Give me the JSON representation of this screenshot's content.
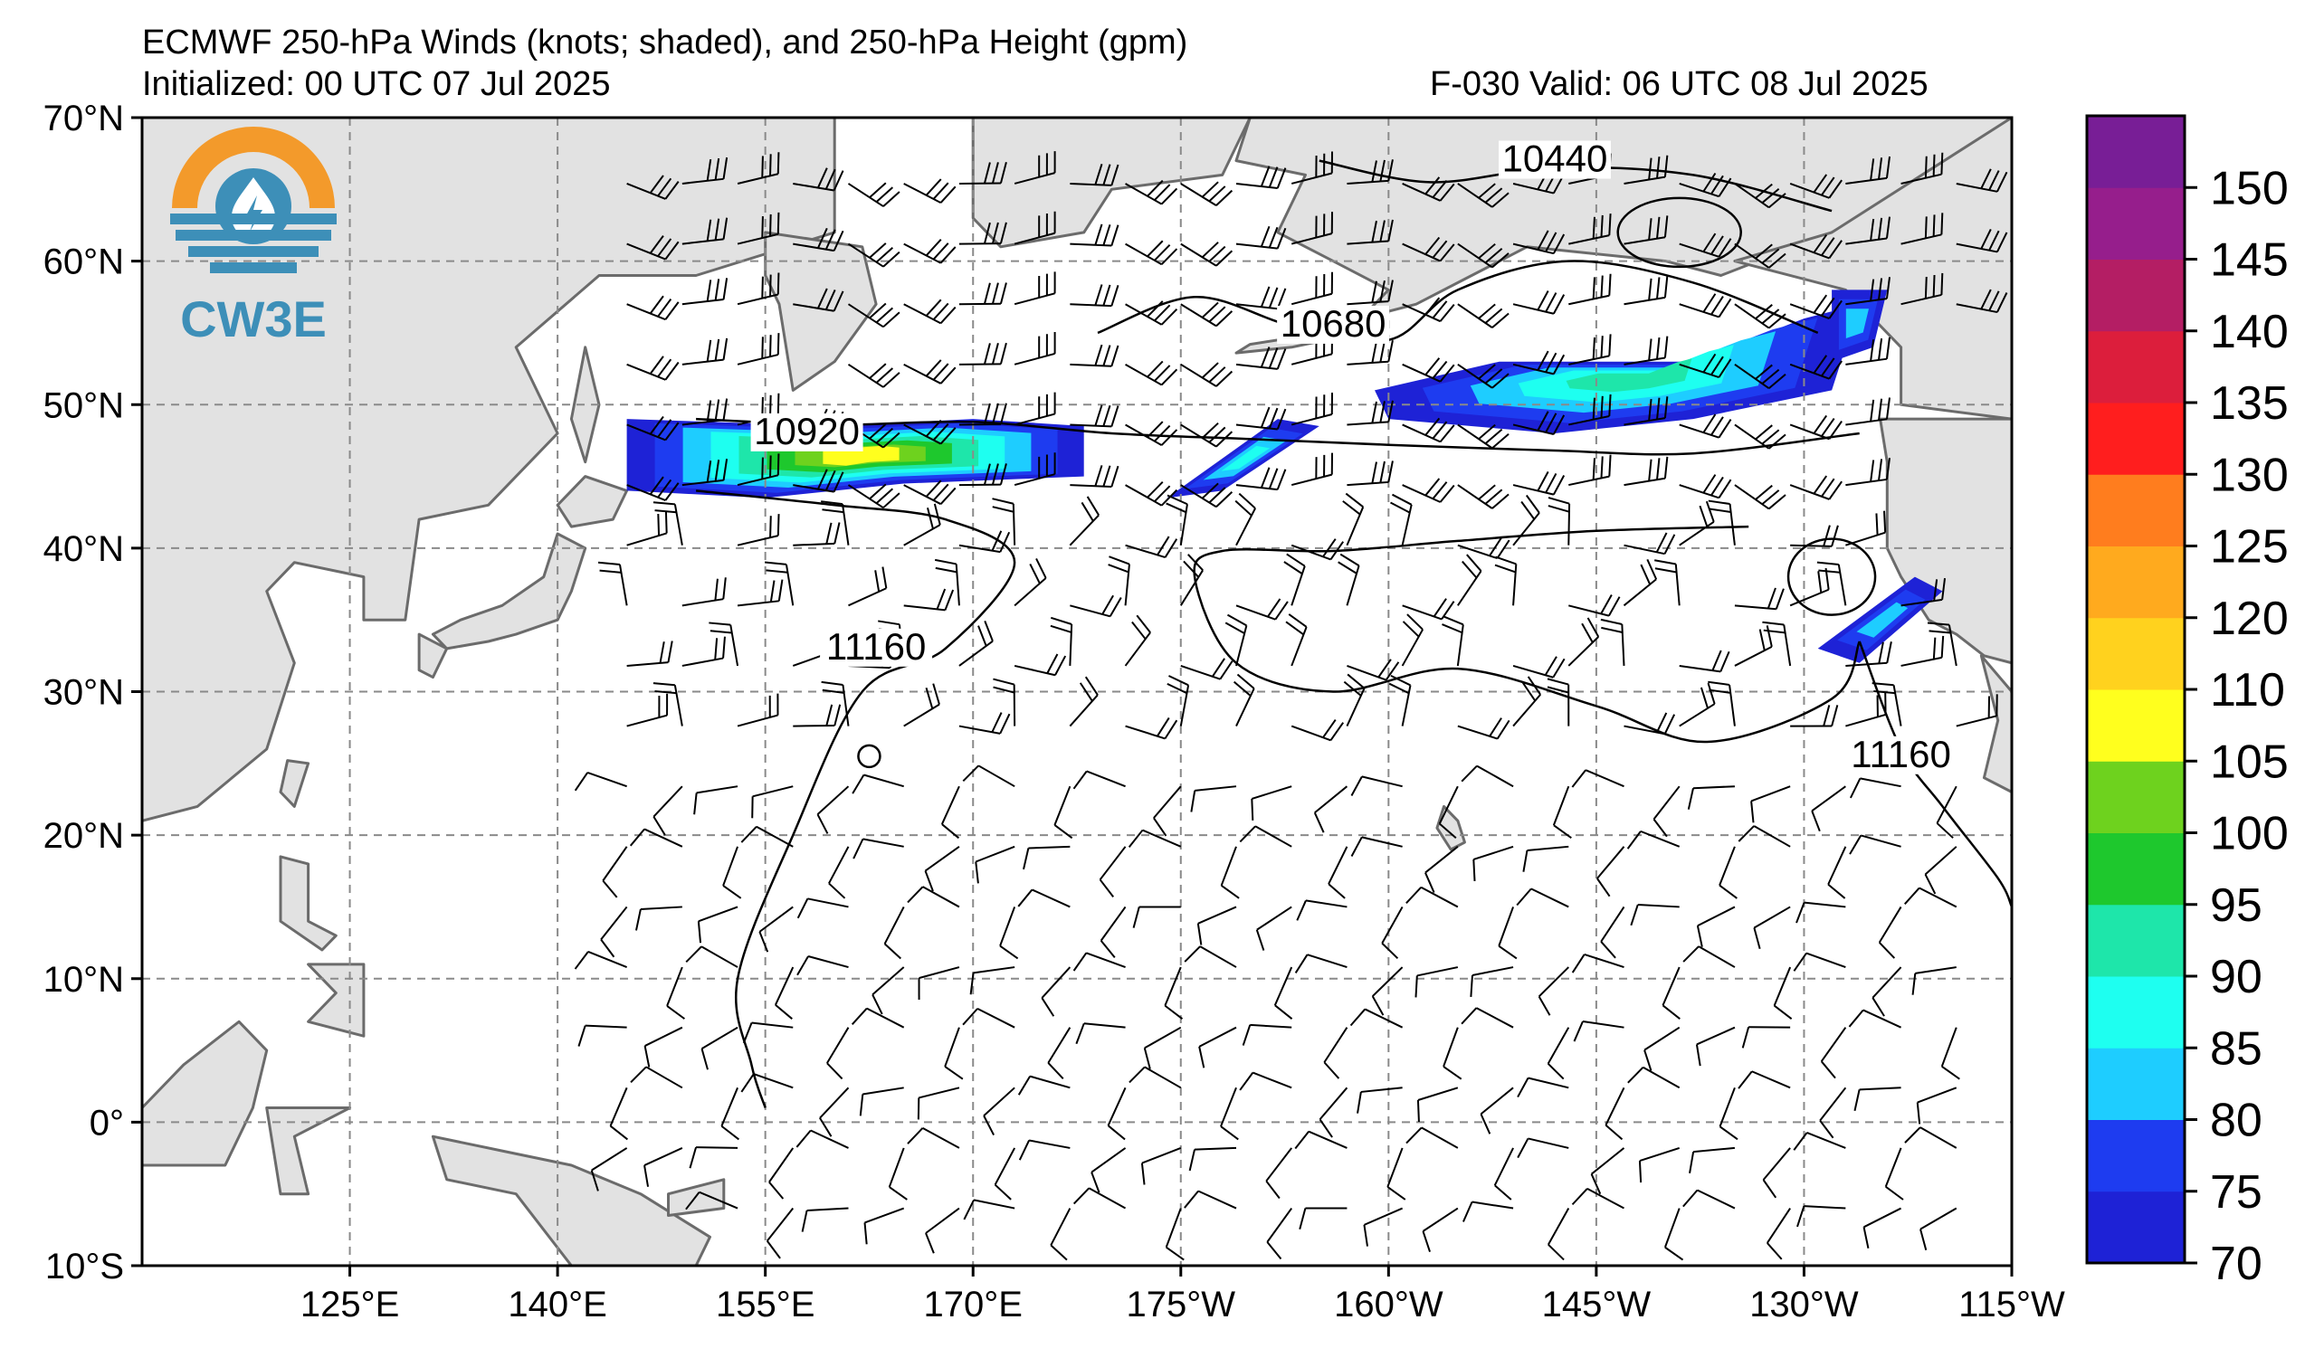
{
  "header": {
    "title_line1": "ECMWF 250-hPa Winds (knots; shaded), and 250-hPa Height (gpm)",
    "title_line2": "Initialized: 00 UTC 07 Jul 2025",
    "title_right": "F-030  Valid: 06 UTC 08 Jul 2025"
  },
  "logo": {
    "text": "CW3E",
    "colors": {
      "orange": "#f39a2b",
      "blue": "#3d8fb8"
    }
  },
  "map": {
    "extent": {
      "lon_min": 110,
      "lon_max": 245,
      "lat_min": -10,
      "lat_max": 70
    },
    "lat_ticks": [
      {
        "lat": 70,
        "label": "70°N"
      },
      {
        "lat": 60,
        "label": "60°N"
      },
      {
        "lat": 50,
        "label": "50°N"
      },
      {
        "lat": 40,
        "label": "40°N"
      },
      {
        "lat": 30,
        "label": "30°N"
      },
      {
        "lat": 20,
        "label": "20°N"
      },
      {
        "lat": 10,
        "label": "10°N"
      },
      {
        "lat": 0,
        "label": "0°"
      },
      {
        "lat": -10,
        "label": "10°S"
      }
    ],
    "lon_ticks": [
      {
        "lon": 125,
        "label": "125°E"
      },
      {
        "lon": 140,
        "label": "140°E"
      },
      {
        "lon": 155,
        "label": "155°E"
      },
      {
        "lon": 170,
        "label": "170°E"
      },
      {
        "lon": 185,
        "label": "175°W"
      },
      {
        "lon": 200,
        "label": "160°W"
      },
      {
        "lon": 215,
        "label": "145°W"
      },
      {
        "lon": 230,
        "label": "130°W"
      },
      {
        "lon": 245,
        "label": "115°W"
      }
    ],
    "colors": {
      "land": "#e2e2e2",
      "coast": "#6b6b6b",
      "grid": "#8a8a8a",
      "ocean": "#ffffff"
    },
    "height_contours": [
      {
        "label": "10440",
        "points": [
          [
            195,
            67
          ],
          [
            203,
            65.5
          ],
          [
            212,
            66.5
          ],
          [
            222,
            66
          ],
          [
            232,
            63.5
          ]
        ],
        "label_at": [
          212,
          66.5
        ]
      },
      {
        "label": "10680",
        "points": [
          [
            179,
            55
          ],
          [
            186,
            57.5
          ],
          [
            193,
            55.5
          ],
          [
            200,
            54.5
          ],
          [
            205,
            58
          ],
          [
            213,
            60
          ],
          [
            222,
            58.5
          ],
          [
            231,
            55
          ]
        ],
        "label_at": [
          196,
          55
        ]
      },
      {
        "label": "10920",
        "points": [
          [
            150,
            49
          ],
          [
            160,
            48.6
          ],
          [
            170,
            48.8
          ],
          [
            180,
            48
          ],
          [
            190,
            47.6
          ],
          [
            200,
            47.2
          ],
          [
            212,
            46.8
          ],
          [
            222,
            46.6
          ],
          [
            234,
            48
          ]
        ],
        "label_at": [
          158,
          47.5
        ]
      },
      {
        "label": "11160",
        "points": [
          [
            150,
            44
          ],
          [
            160,
            43
          ],
          [
            168,
            42
          ],
          [
            173,
            39
          ],
          [
            168,
            33
          ],
          [
            162,
            30
          ],
          [
            157,
            20
          ],
          [
            153,
            10
          ],
          [
            154,
            4
          ],
          [
            155,
            1
          ]
        ],
        "label_at": [
          163,
          32.5
        ]
      },
      {
        "label": "11160",
        "points": [
          [
            226,
            41.5
          ],
          [
            215,
            41.2
          ],
          [
            205,
            40.5
          ],
          [
            196,
            39.8
          ],
          [
            188,
            39.8
          ],
          [
            186,
            38
          ],
          [
            189,
            32
          ],
          [
            196,
            30
          ],
          [
            205,
            31.6
          ],
          [
            215,
            29
          ],
          [
            223,
            26.5
          ],
          [
            232,
            29.5
          ],
          [
            234,
            33.5
          ]
        ],
        "label_at": null
      },
      {
        "label": "11160",
        "points": [
          [
            234,
            33.5
          ],
          [
            237,
            26
          ],
          [
            240,
            22
          ],
          [
            244,
            17
          ],
          [
            245,
            15
          ]
        ],
        "label_at": [
          237,
          25
        ]
      }
    ],
    "jet_streaks": [
      {
        "max_knots": 105,
        "points": [
          [
            145,
            49
          ],
          [
            160,
            48.5
          ],
          [
            170,
            49
          ],
          [
            178,
            48.5
          ],
          [
            178,
            45
          ],
          [
            165,
            44.5
          ],
          [
            155,
            43.5
          ],
          [
            145,
            44
          ]
        ]
      },
      {
        "max_knots": 85,
        "points": [
          [
            184,
            43.5
          ],
          [
            192,
            49
          ],
          [
            195,
            48.5
          ],
          [
            188,
            44
          ]
        ]
      },
      {
        "max_knots": 90,
        "points": [
          [
            199,
            51
          ],
          [
            208,
            53
          ],
          [
            222,
            53
          ],
          [
            230,
            56
          ],
          [
            234,
            57
          ],
          [
            232,
            51
          ],
          [
            222,
            49
          ],
          [
            212,
            48
          ],
          [
            200,
            49
          ]
        ]
      },
      {
        "max_knots": 80,
        "points": [
          [
            232,
            58
          ],
          [
            236,
            58
          ],
          [
            235,
            54
          ],
          [
            232,
            53
          ]
        ]
      },
      {
        "max_knots": 80,
        "points": [
          [
            231,
            33
          ],
          [
            238,
            38
          ],
          [
            240,
            37
          ],
          [
            234,
            32
          ]
        ]
      }
    ]
  },
  "colorbar": {
    "levels": [
      70,
      75,
      80,
      85,
      90,
      95,
      100,
      105,
      110,
      120,
      125,
      130,
      135,
      140,
      145,
      150
    ],
    "colors": [
      "#1e22d6",
      "#1e3cf0",
      "#1ecdff",
      "#1efff0",
      "#1ee6aa",
      "#1ec82d",
      "#6ed21e",
      "#ffff1e",
      "#ffd21e",
      "#ffaa1e",
      "#ff7d1e",
      "#ff1e1e",
      "#dc1e3c",
      "#b41e64",
      "#961e8c",
      "#781e96"
    ],
    "tick_labels": [
      "70",
      "75",
      "80",
      "85",
      "90",
      "95",
      "100",
      "105",
      "110",
      "120",
      "125",
      "130",
      "135",
      "140",
      "145",
      "150"
    ]
  }
}
